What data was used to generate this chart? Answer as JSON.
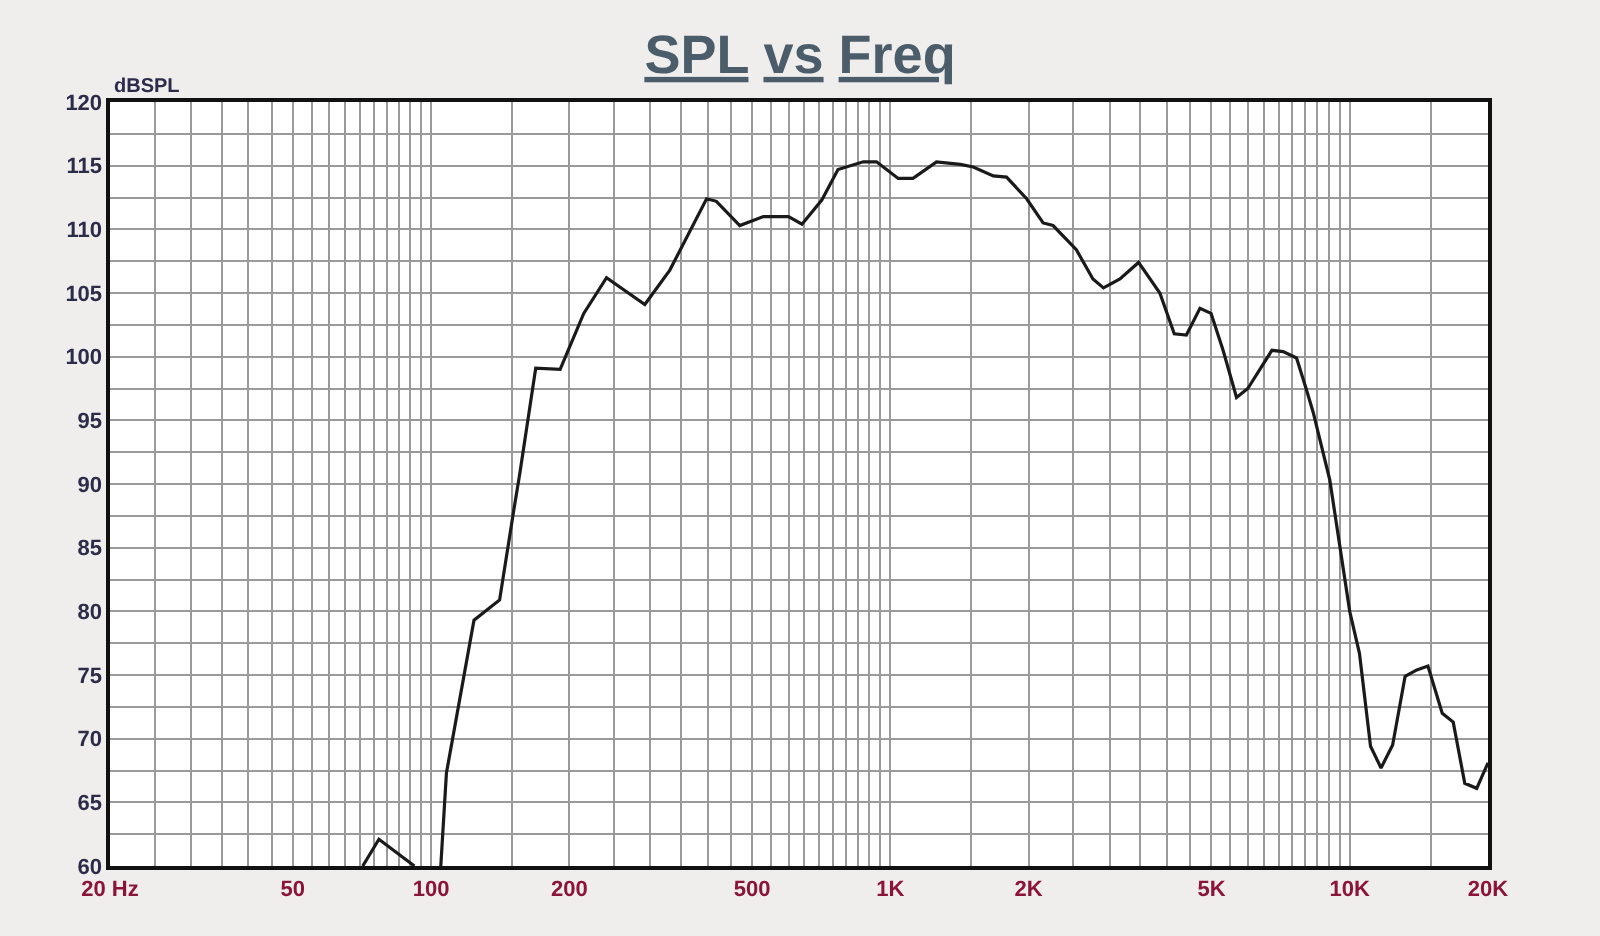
{
  "chart_data": {
    "type": "line",
    "title": "SPL vs Freq",
    "ylabel": "dBSPL",
    "color": "#1a1a1a",
    "log": "x",
    "grid": true,
    "x": [
      71,
      77,
      92,
      98,
      105,
      108,
      124,
      141,
      151,
      156,
      169,
      191,
      215,
      241,
      292,
      331,
      398,
      418,
      470,
      529,
      600,
      642,
      709,
      769,
      873,
      933,
      1040,
      1120,
      1260,
      1420,
      1515,
      1675,
      1790,
      1980,
      2150,
      2260,
      2540,
      2760,
      2910,
      3160,
      3470,
      3860,
      4150,
      4410,
      4720,
      4990,
      5300,
      5670,
      6000,
      6770,
      7160,
      7660,
      8050,
      8330,
      9050,
      10000,
      10500,
      11100,
      11700,
      12400,
      13200,
      14000,
      14800,
      15900,
      16800,
      17800,
      18900,
      20000
    ],
    "values": [
      60,
      62.1,
      60,
      null,
      60,
      67.3,
      79.3,
      80.9,
      87.7,
      90.8,
      99.1,
      99.0,
      103.4,
      106.2,
      104.1,
      106.8,
      112.4,
      112.2,
      110.3,
      111.0,
      111.0,
      110.4,
      112.3,
      114.7,
      115.3,
      115.3,
      114.0,
      114.0,
      115.3,
      115.1,
      114.9,
      114.2,
      114.1,
      112.4,
      110.5,
      110.3,
      108.4,
      106.1,
      105.4,
      106.1,
      107.4,
      105.0,
      101.8,
      101.7,
      103.8,
      103.4,
      100.5,
      96.8,
      97.5,
      100.5,
      100.4,
      99.9,
      97.4,
      95.6,
      90.3,
      80.0,
      76.7,
      69.4,
      67.7,
      69.5,
      74.9,
      75.4,
      75.7,
      72.0,
      71.3,
      66.5,
      66.1,
      68.1
    ],
    "xlim": [
      20,
      20000
    ],
    "ylim": [
      60,
      120
    ],
    "xticks": [
      {
        "value": 20,
        "label": "20 Hz"
      },
      {
        "value": 25,
        "label": null
      },
      {
        "value": 30,
        "label": null
      },
      {
        "value": 35,
        "label": null
      },
      {
        "value": 40,
        "label": null
      },
      {
        "value": 45,
        "label": null
      },
      50,
      {
        "value": 55,
        "label": null
      },
      {
        "value": 60,
        "label": null
      },
      {
        "value": 65,
        "label": null
      },
      {
        "value": 70,
        "label": null
      },
      {
        "value": 75,
        "label": null
      },
      {
        "value": 80,
        "label": null
      },
      {
        "value": 85,
        "label": null
      },
      {
        "value": 90,
        "label": null
      },
      {
        "value": 95,
        "label": null
      },
      100,
      {
        "value": 150,
        "label": null
      },
      200,
      {
        "value": 250,
        "label": null
      },
      {
        "value": 300,
        "label": null
      },
      {
        "value": 350,
        "label": null
      },
      {
        "value": 400,
        "label": null
      },
      {
        "value": 450,
        "label": null
      },
      500,
      {
        "value": 550,
        "label": null
      },
      {
        "value": 600,
        "label": null
      },
      {
        "value": 650,
        "label": null
      },
      {
        "value": 700,
        "label": null
      },
      {
        "value": 750,
        "label": null
      },
      {
        "value": 800,
        "label": null
      },
      {
        "value": 850,
        "label": null
      },
      {
        "value": 900,
        "label": null
      },
      {
        "value": 950,
        "label": null
      },
      {
        "value": 1000,
        "label": "1K"
      },
      {
        "value": 1500,
        "label": null
      },
      {
        "value": 2000,
        "label": "2K"
      },
      {
        "value": 2500,
        "label": null
      },
      {
        "value": 3000,
        "label": null
      },
      {
        "value": 3500,
        "label": null
      },
      {
        "value": 4000,
        "label": null
      },
      {
        "value": 4500,
        "label": null
      },
      {
        "value": 5000,
        "label": "5K"
      },
      {
        "value": 5500,
        "label": null
      },
      {
        "value": 6000,
        "label": null
      },
      {
        "value": 6500,
        "label": null
      },
      {
        "value": 7000,
        "label": null
      },
      {
        "value": 7500,
        "label": null
      },
      {
        "value": 8000,
        "label": null
      },
      {
        "value": 8500,
        "label": null
      },
      {
        "value": 9000,
        "label": null
      },
      {
        "value": 9500,
        "label": null
      },
      {
        "value": 10000,
        "label": "10K"
      },
      {
        "value": 15000,
        "label": null
      },
      {
        "value": 20000,
        "label": "20K"
      }
    ],
    "yticks": [
      60,
      {
        "value": 62.5,
        "label": null
      },
      65,
      {
        "value": 67.5,
        "label": null
      },
      70,
      {
        "value": 72.5,
        "label": null
      },
      75,
      {
        "value": 77.5,
        "label": null
      },
      80,
      {
        "value": 82.5,
        "label": null
      },
      85,
      {
        "value": 87.5,
        "label": null
      },
      90,
      {
        "value": 92.5,
        "label": null
      },
      95,
      {
        "value": 97.5,
        "label": null
      },
      100,
      {
        "value": 102.5,
        "label": null
      },
      105,
      {
        "value": 107.5,
        "label": null
      },
      110,
      {
        "value": 112.5,
        "label": null
      },
      115,
      {
        "value": 117.5,
        "label": null
      },
      120
    ]
  }
}
